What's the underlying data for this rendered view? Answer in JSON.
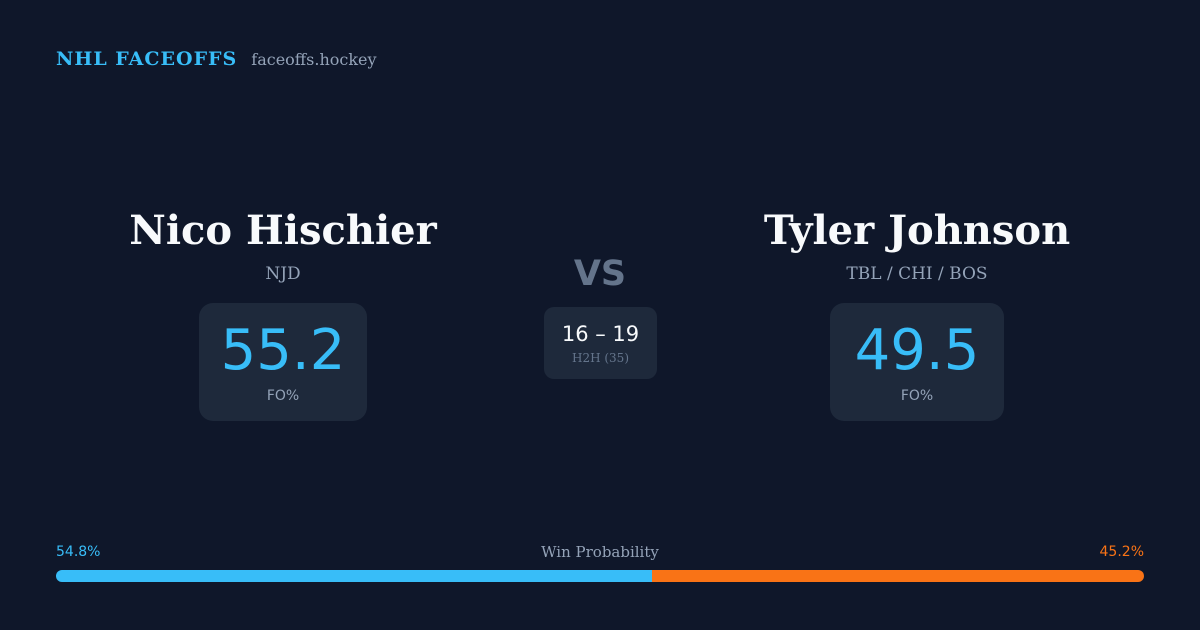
{
  "brand": {
    "title": "NHL FACEOFFS",
    "url": "faceoffs.hockey"
  },
  "players": {
    "left": {
      "name": "Nico Hischier",
      "team": "NJD",
      "fo_value": "55.2",
      "fo_label": "FO%"
    },
    "right": {
      "name": "Tyler Johnson",
      "team": "TBL / CHI / BOS",
      "fo_value": "49.5",
      "fo_label": "FO%"
    }
  },
  "versus": {
    "label": "VS",
    "h2h_score": "16 – 19",
    "h2h_label": "H2H (35)"
  },
  "win_probability": {
    "title": "Win Probability",
    "left_label": "54.8%",
    "right_label": "45.2%",
    "left_fraction": 0.548,
    "right_fraction": 0.452
  },
  "colors": {
    "background": "#0f172a",
    "card": "#1e293b",
    "accent_blue": "#38bdf8",
    "accent_orange": "#f97316",
    "muted": "#94a3b8"
  }
}
